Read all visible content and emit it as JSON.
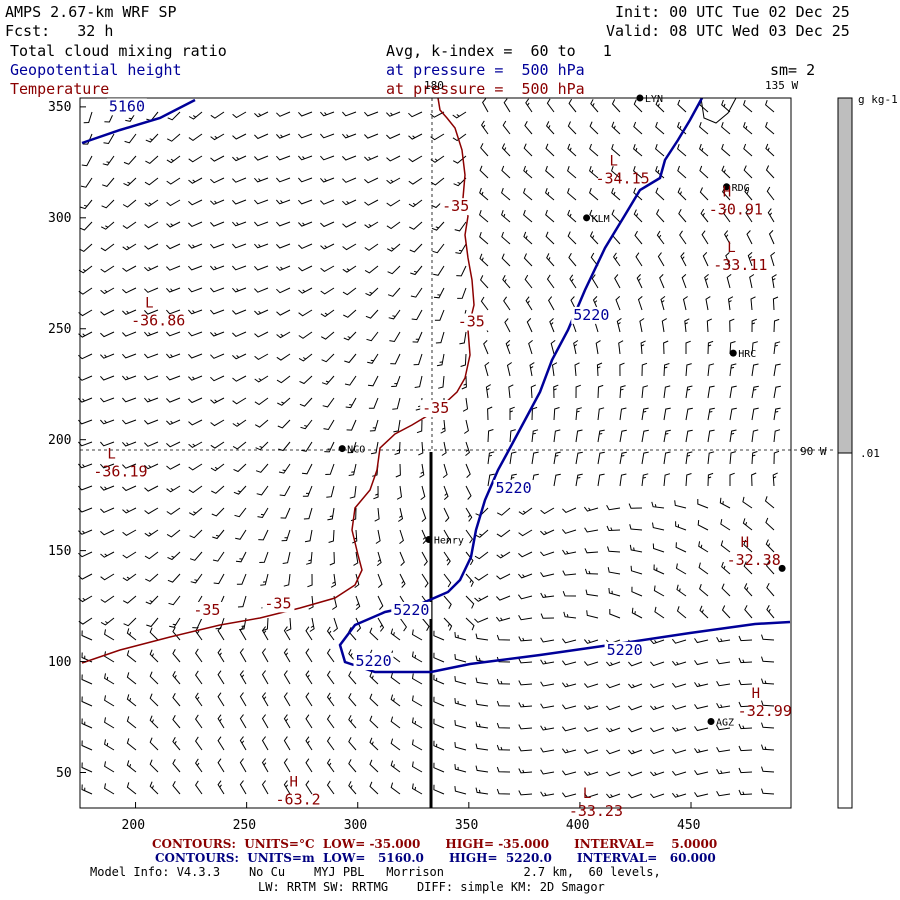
{
  "header": {
    "model": "AMPS 2.67-km WRF SP",
    "fcst": "Fcst:   32 h",
    "init": "Init: 00 UTC Tue 02 Dec 25",
    "valid": "Valid: 08 UTC Wed 03 Dec 25",
    "field1": "Total cloud mixing ratio",
    "field1_detail": "Avg, k-index =  60 to   1",
    "field2": "Geopotential height",
    "field2_detail": "at pressure =  500 hPa",
    "field3": "Temperature",
    "field3_detail": "at pressure =  500 hPa",
    "sm": "sm= 2"
  },
  "colors": {
    "height_contour": "#000099",
    "temp_contour": "#8b0000",
    "colorbar_fill": "#bebebe"
  },
  "axes": {
    "x_ticks": [
      "200",
      "250",
      "300",
      "350",
      "400",
      "450"
    ],
    "y_ticks": [
      "350",
      "300",
      "250",
      "200",
      "150",
      "100",
      "50"
    ],
    "x_range": [
      175,
      495
    ],
    "y_range": [
      34,
      354
    ]
  },
  "meridians": {
    "m180": "180",
    "m135": "135 W",
    "m90": "90 W"
  },
  "colorbar": {
    "unit": "g kg-1",
    "label": ".01"
  },
  "stations": [
    {
      "name": "LYN",
      "x": 427,
      "y": 354
    },
    {
      "name": "RDG",
      "x": 466,
      "y": 314
    },
    {
      "name": "KLM",
      "x": 403,
      "y": 300
    },
    {
      "name": "HRC",
      "x": 469,
      "y": 239
    },
    {
      "name": "NCO",
      "x": 293,
      "y": 196
    },
    {
      "name": "Henry",
      "x": 332,
      "y": 155
    },
    {
      "name": "",
      "x": 491,
      "y": 142
    },
    {
      "name": "AGZ",
      "x": 459,
      "y": 73
    }
  ],
  "extrema": [
    {
      "kind": "L",
      "value": "-34.15",
      "x": 407,
      "y": 320,
      "color": "red"
    },
    {
      "kind": "H",
      "value": "-30.91",
      "x": 458,
      "y": 306,
      "color": "red"
    },
    {
      "kind": "L",
      "value": "-33.11",
      "x": 460,
      "y": 281,
      "color": "red"
    },
    {
      "kind": "L",
      "value": "-36.86",
      "x": 198,
      "y": 256,
      "color": "red"
    },
    {
      "kind": "L",
      "value": "-36.19",
      "x": 181,
      "y": 188,
      "color": "red"
    },
    {
      "kind": "H",
      "value": "-32.38",
      "x": 466,
      "y": 148,
      "color": "red"
    },
    {
      "kind": "H",
      "value": "-32.99",
      "x": 471,
      "y": 80,
      "color": "red"
    },
    {
      "kind": "H",
      "value": "-63.2",
      "x": 263,
      "y": 40,
      "color": "red"
    },
    {
      "kind": "L",
      "value": "-33.23",
      "x": 395,
      "y": 35,
      "color": "red"
    }
  ],
  "contour_labels": {
    "height": [
      {
        "text": "5160",
        "x": 188,
        "y": 348
      },
      {
        "text": "5220",
        "x": 397,
        "y": 254
      },
      {
        "text": "5220",
        "x": 362,
        "y": 176
      },
      {
        "text": "5220",
        "x": 316,
        "y": 121
      },
      {
        "text": "5220",
        "x": 299,
        "y": 98
      },
      {
        "text": "5220",
        "x": 412,
        "y": 103
      }
    ],
    "temperature": [
      {
        "text": "-35",
        "x": 338,
        "y": 303
      },
      {
        "text": "-35",
        "x": 345,
        "y": 251
      },
      {
        "text": "-35",
        "x": 329,
        "y": 212
      },
      {
        "text": "-35",
        "x": 258,
        "y": 124
      },
      {
        "text": "-35",
        "x": 226,
        "y": 121
      }
    ]
  },
  "footer": {
    "temp_contours": "CONTOURS:  UNITS=°C  LOW= -35.000      HIGH= -35.000      INTERVAL=    5.0000",
    "height_contours": "CONTOURS:  UNITS=m  LOW=   5160.0      HIGH=  5220.0      INTERVAL=   60.000",
    "model_info": "Model Info: V4.3.3    No Cu    MYJ PBL   Morrison           2.7 km,  60 levels,",
    "model_info2": "LW: RRTM SW: RRTMG    DIFF: simple KM: 2D Smagor"
  }
}
